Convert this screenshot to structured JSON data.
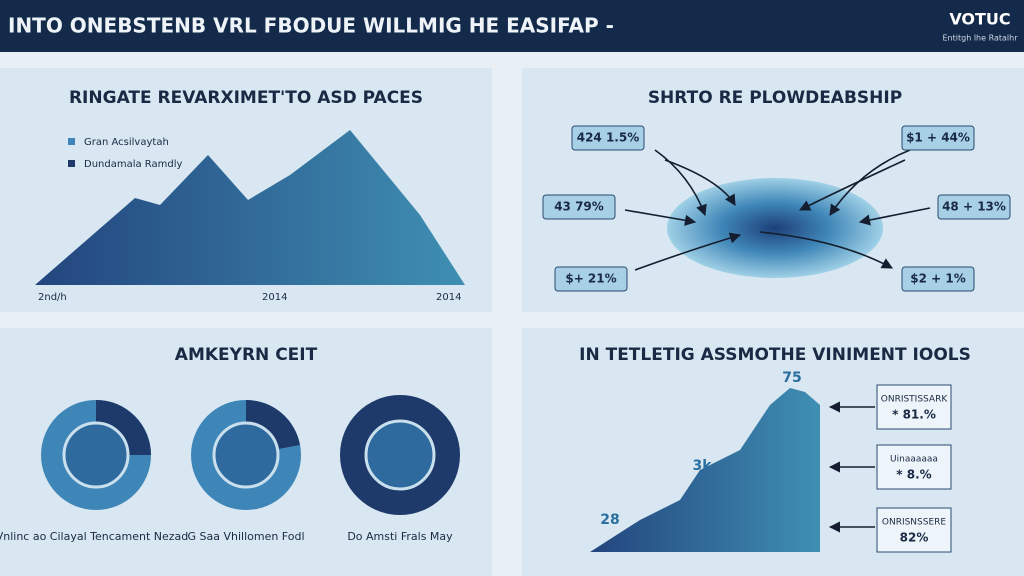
{
  "header": {
    "title": "INTO ONEBSTENB VRL FBODUE WILLMIG HE EASIFAP -",
    "logo": "VOTUC",
    "logo_sub": "Entitgh lhe Ratalhr"
  },
  "panels": [
    {
      "title": "RINGATE REVARXIMET'TO ASD PACES",
      "legend": [
        "Gran Acsilvaytah",
        "Dundamala Ramdly"
      ],
      "x_labels": [
        "2nd/h",
        "2014",
        "2014"
      ]
    },
    {
      "title": "SHRTO RE PLOWDEABSHIP",
      "labels": [
        "424 1.5%",
        "43 79%",
        "$+ 21%",
        "$1 + 44%",
        "48 + 13%",
        "$2 + 1%"
      ]
    },
    {
      "title": "AMKEYRN CEIT",
      "captions": [
        "Vnlinc ao Cilayal Tencament Nezad",
        "G Saa Vhillomen Fodl",
        "Do Amsti Frals May"
      ]
    },
    {
      "title": "IN TETLETIG ASSMOTHE VINIMENT IOOLS",
      "values": [
        "75",
        "3k",
        "28"
      ],
      "boxes": [
        [
          "ONRISTISSARK",
          "* 81.%"
        ],
        [
          "Uinaaaaaa",
          "* 8.%"
        ],
        [
          "ONRISNSSERE",
          "82%"
        ]
      ]
    }
  ]
}
